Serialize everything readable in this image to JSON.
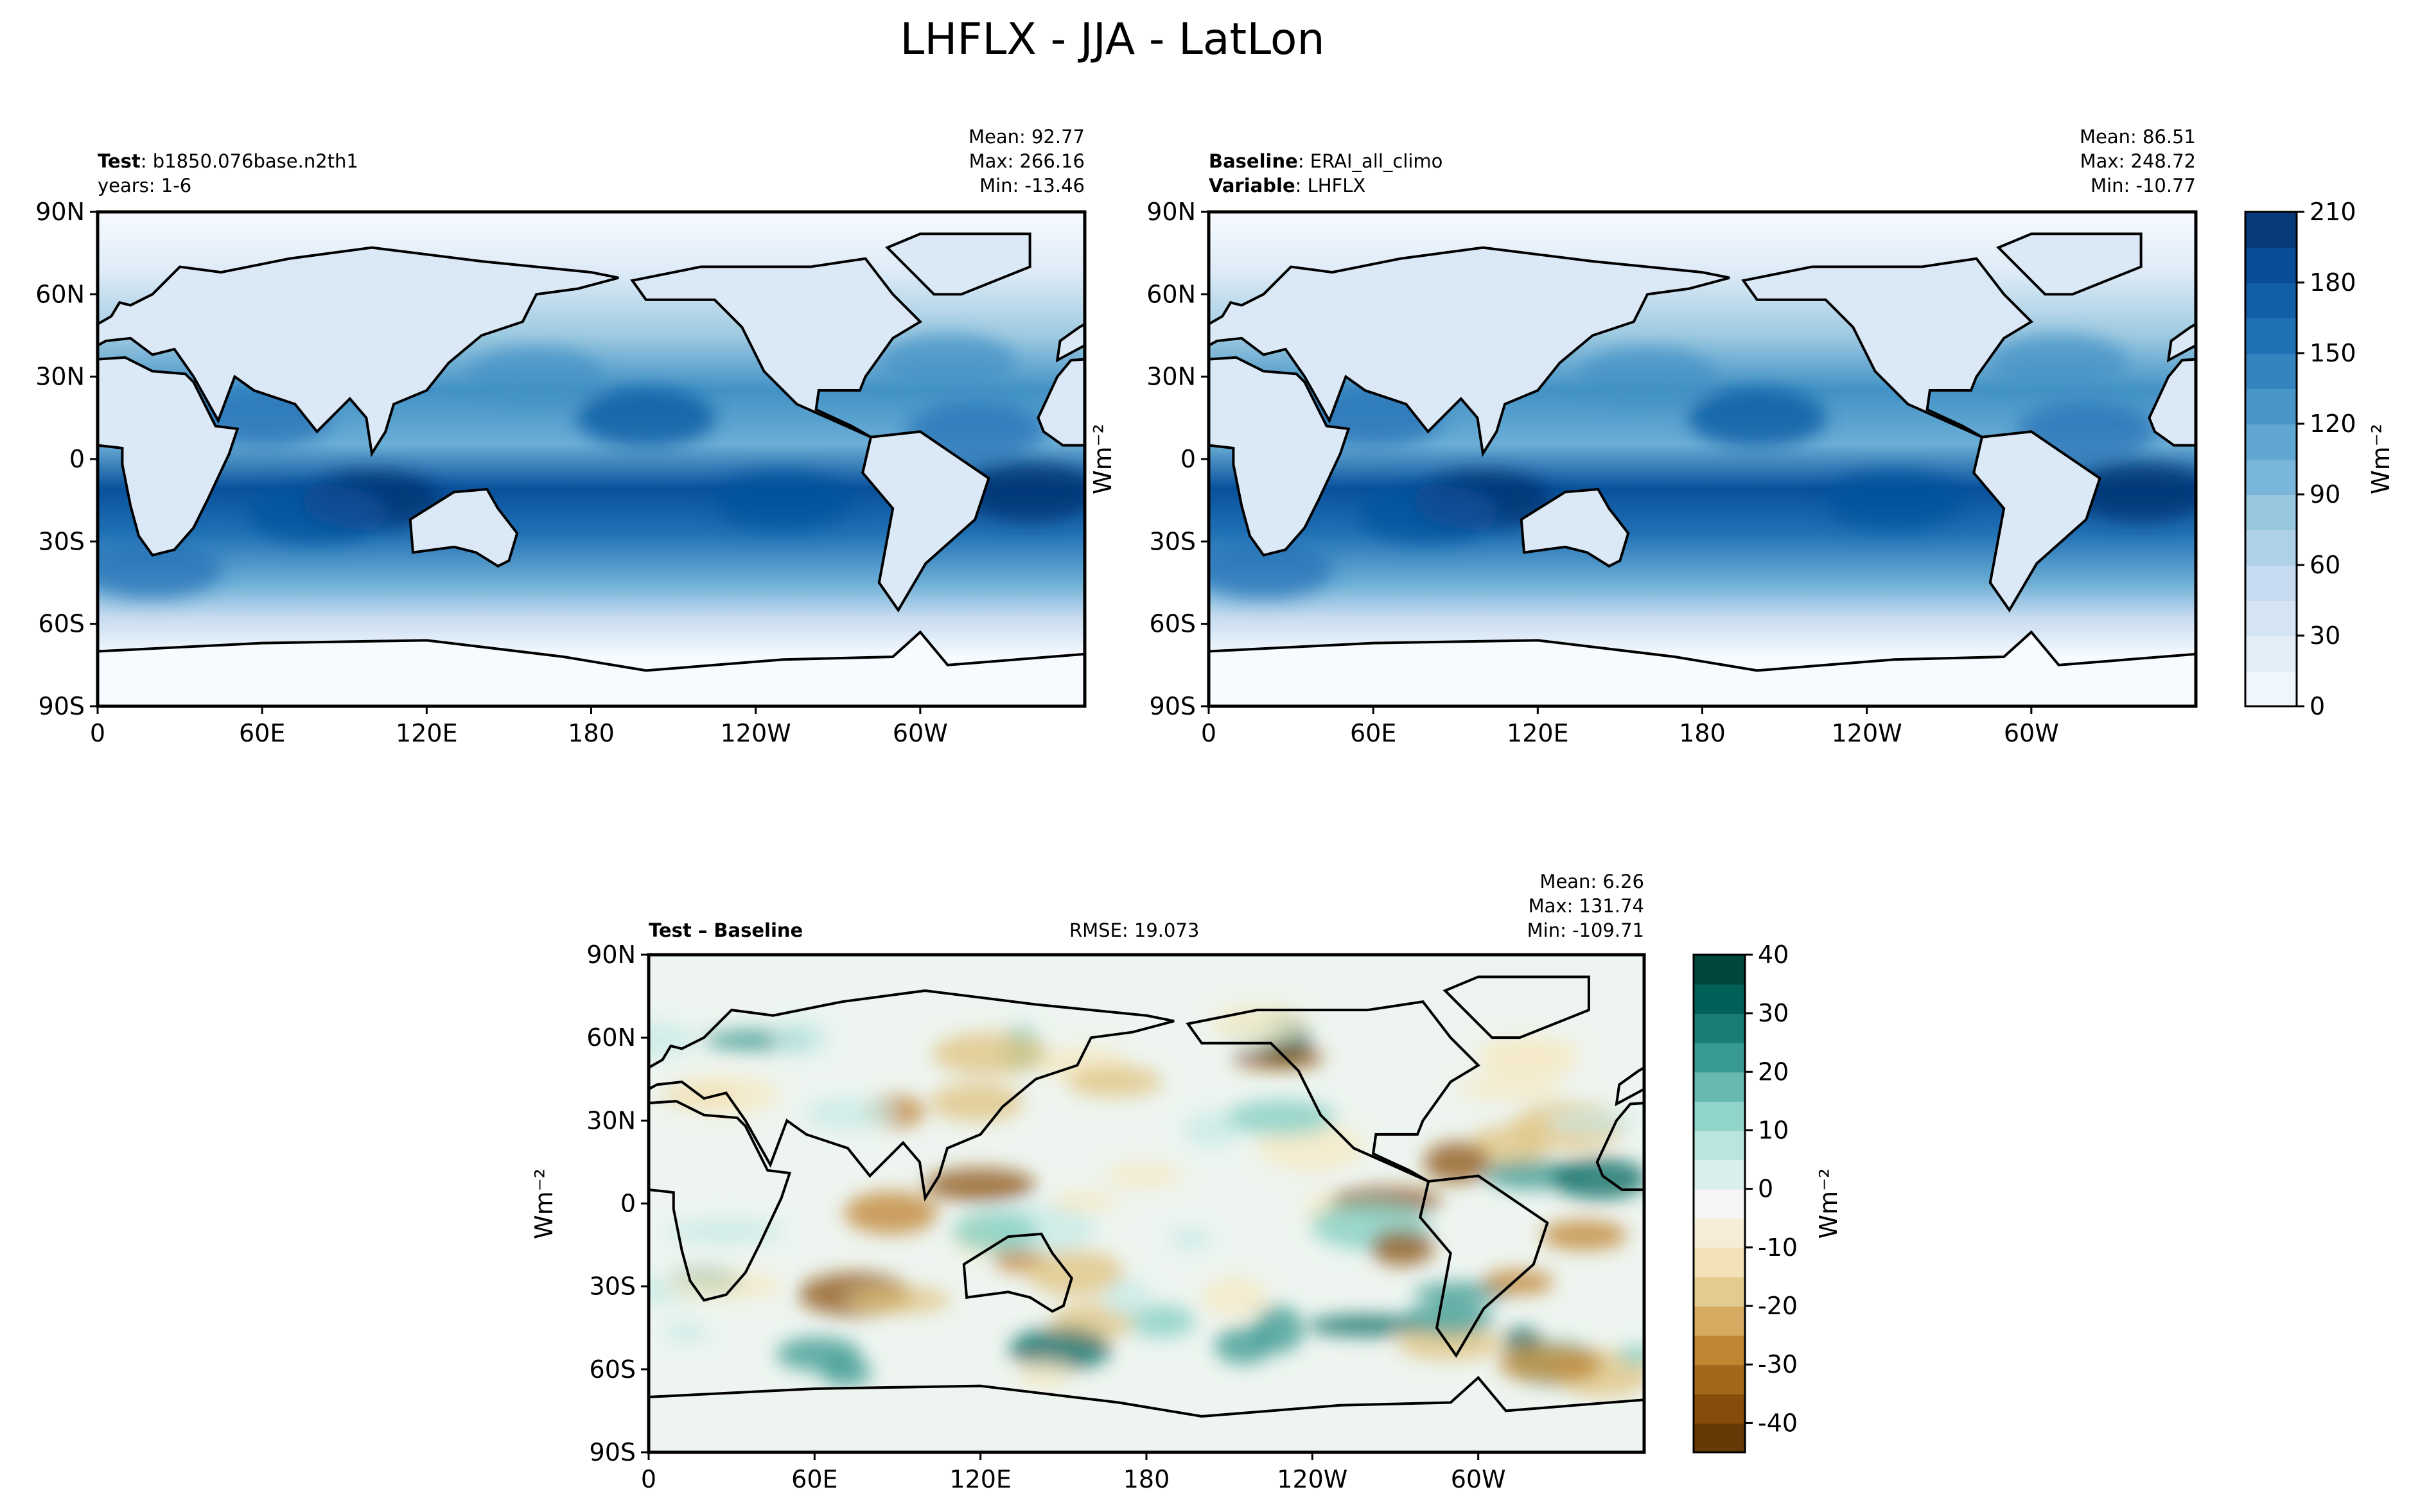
{
  "title": "LHFLX - JJA - LatLon",
  "panels": [
    {
      "id": "test",
      "header_left": [
        {
          "bold": "Test",
          "text": ": b1850.076base.n2th1"
        },
        {
          "bold": "",
          "text": "years: 1-6"
        }
      ],
      "stats": [
        "Mean: 92.77",
        "Max: 266.16",
        "Min: -13.46"
      ]
    },
    {
      "id": "baseline",
      "header_left": [
        {
          "bold": "Baseline",
          "text": ": ERAI_all_climo"
        },
        {
          "bold": "Variable",
          "text": ": LHFLX"
        }
      ],
      "stats": [
        "Mean: 86.51",
        "Max: 248.72",
        "Min: -10.77"
      ]
    },
    {
      "id": "diff",
      "header_left": [
        {
          "bold": "Test – Baseline",
          "text": ""
        }
      ],
      "rmse": "RMSE: 19.073",
      "stats": [
        "Mean:  6.26",
        "Max: 131.74",
        "Min: -109.71"
      ]
    }
  ],
  "chart_data": [
    {
      "type": "heatmap",
      "title": "Test: b1850.076base.n2th1",
      "x_ticks": [
        "0",
        "60E",
        "120E",
        "180",
        "120W",
        "60W"
      ],
      "y_ticks": [
        "90N",
        "60N",
        "30N",
        "0",
        "30S",
        "60S",
        "90S"
      ],
      "xlim": [
        0,
        360
      ],
      "ylim": [
        -90,
        90
      ],
      "mean": 92.77,
      "max": 266.16,
      "min": -13.46,
      "colorbar": {
        "label": "Wm-2",
        "ticks": [
          "0",
          "30",
          "60",
          "90",
          "120",
          "150",
          "180",
          "210"
        ],
        "range": [
          0,
          210
        ]
      }
    },
    {
      "type": "heatmap",
      "title": "Baseline: ERAI_all_climo",
      "x_ticks": [
        "0",
        "60E",
        "120E",
        "180",
        "120W",
        "60W"
      ],
      "y_ticks": [
        "90N",
        "60N",
        "30N",
        "0",
        "30S",
        "60S",
        "90S"
      ],
      "xlim": [
        0,
        360
      ],
      "ylim": [
        -90,
        90
      ],
      "mean": 86.51,
      "max": 248.72,
      "min": -10.77
    },
    {
      "type": "heatmap",
      "title": "Test - Baseline",
      "rmse": 19.073,
      "x_ticks": [
        "0",
        "60E",
        "120E",
        "180",
        "120W",
        "60W"
      ],
      "y_ticks": [
        "90N",
        "60N",
        "30N",
        "0",
        "30S",
        "60S",
        "90S"
      ],
      "xlim": [
        0,
        360
      ],
      "ylim": [
        -90,
        90
      ],
      "mean": 6.26,
      "max": 131.74,
      "min": -109.71,
      "colorbar": {
        "label": "Wm-2",
        "ticks": [
          "-40",
          "-30",
          "-20",
          "-10",
          "0",
          "10",
          "20",
          "30",
          "40"
        ],
        "range": [
          -45,
          40
        ]
      }
    }
  ],
  "ylabel": "Wm⁻²",
  "colors": {
    "seq": [
      "#f7fbff",
      "#deebf7",
      "#c6dbef",
      "#9ecae1",
      "#6baed6",
      "#4292c6",
      "#2171b5",
      "#08519c",
      "#08306b"
    ],
    "div": [
      "#543005",
      "#8c510a",
      "#bf812d",
      "#dfc27d",
      "#f6e8c3",
      "#f5f5f5",
      "#c7eae5",
      "#80cdc1",
      "#35978f",
      "#01665e",
      "#003c30"
    ]
  }
}
